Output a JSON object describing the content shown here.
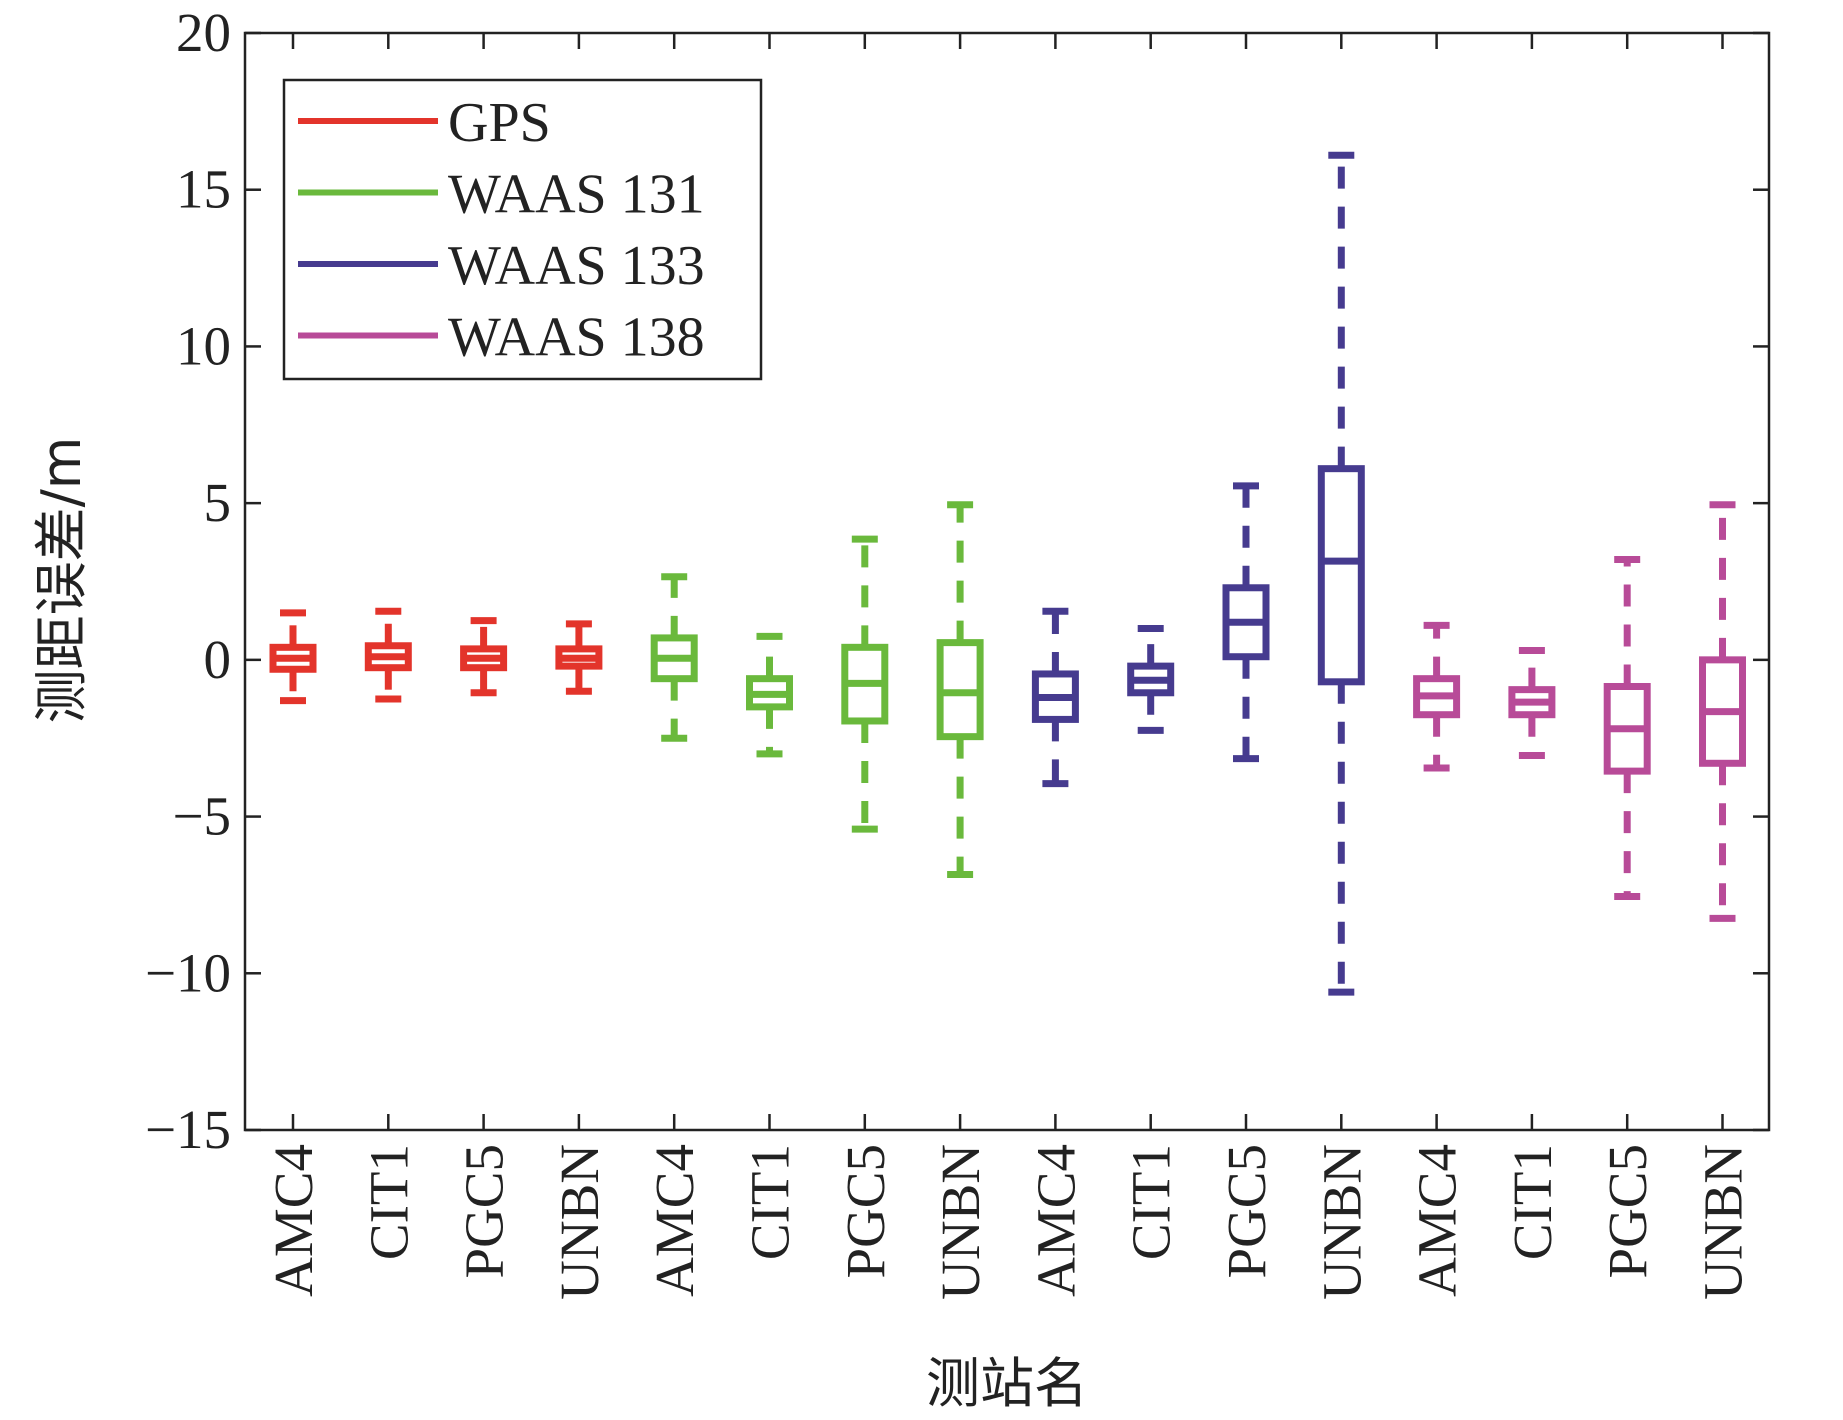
{
  "chart_data": {
    "type": "boxplot",
    "title": "",
    "xlabel": "测站名",
    "ylabel": "测距误差/m",
    "ylim": [
      -15,
      20
    ],
    "yticks": [
      -15,
      -10,
      -5,
      0,
      5,
      10,
      15,
      20
    ],
    "ytick_labels": [
      "−15",
      "−10",
      "−5",
      "0",
      "5",
      "10",
      "15",
      "20"
    ],
    "grid": false,
    "legend_placement": "top-left",
    "categories": [
      "AMC4",
      "CIT1",
      "PGC5",
      "UNBN",
      "AMC4",
      "CIT1",
      "PGC5",
      "UNBN",
      "AMC4",
      "CIT1",
      "PGC5",
      "UNBN",
      "AMC4",
      "CIT1",
      "PGC5",
      "UNBN"
    ],
    "series": [
      {
        "name": "GPS",
        "color": "#e3342b",
        "boxes": [
          {
            "station": "AMC4",
            "whisker_low": -1.3,
            "q1": -0.3,
            "median": 0.05,
            "q3": 0.4,
            "whisker_high": 1.5
          },
          {
            "station": "CIT1",
            "whisker_low": -1.25,
            "q1": -0.25,
            "median": 0.1,
            "q3": 0.45,
            "whisker_high": 1.55
          },
          {
            "station": "PGC5",
            "whisker_low": -1.05,
            "q1": -0.25,
            "median": 0.05,
            "q3": 0.35,
            "whisker_high": 1.25
          },
          {
            "station": "UNBN",
            "whisker_low": -1.0,
            "q1": -0.2,
            "median": 0.05,
            "q3": 0.35,
            "whisker_high": 1.15
          }
        ]
      },
      {
        "name": "WAAS 131",
        "color": "#6ab93c",
        "boxes": [
          {
            "station": "AMC4",
            "whisker_low": -2.5,
            "q1": -0.6,
            "median": 0.05,
            "q3": 0.7,
            "whisker_high": 2.65
          },
          {
            "station": "CIT1",
            "whisker_low": -3.0,
            "q1": -1.5,
            "median": -1.1,
            "q3": -0.6,
            "whisker_high": 0.75
          },
          {
            "station": "PGC5",
            "whisker_low": -5.4,
            "q1": -1.95,
            "median": -0.75,
            "q3": 0.4,
            "whisker_high": 3.85
          },
          {
            "station": "UNBN",
            "whisker_low": -6.85,
            "q1": -2.45,
            "median": -1.05,
            "q3": 0.55,
            "whisker_high": 4.95
          }
        ]
      },
      {
        "name": "WAAS 133",
        "color": "#463b8f",
        "boxes": [
          {
            "station": "AMC4",
            "whisker_low": -3.95,
            "q1": -1.9,
            "median": -1.2,
            "q3": -0.45,
            "whisker_high": 1.55
          },
          {
            "station": "CIT1",
            "whisker_low": -2.25,
            "q1": -1.05,
            "median": -0.65,
            "q3": -0.2,
            "whisker_high": 1.0
          },
          {
            "station": "PGC5",
            "whisker_low": -3.15,
            "q1": 0.1,
            "median": 1.2,
            "q3": 2.3,
            "whisker_high": 5.55
          },
          {
            "station": "UNBN",
            "whisker_low": -10.6,
            "q1": -0.7,
            "median": 3.15,
            "q3": 6.1,
            "whisker_high": 16.1
          }
        ]
      },
      {
        "name": "WAAS 138",
        "color": "#b84b98",
        "boxes": [
          {
            "station": "AMC4",
            "whisker_low": -3.45,
            "q1": -1.75,
            "median": -1.15,
            "q3": -0.6,
            "whisker_high": 1.1
          },
          {
            "station": "CIT1",
            "whisker_low": -3.05,
            "q1": -1.75,
            "median": -1.35,
            "q3": -0.95,
            "whisker_high": 0.3
          },
          {
            "station": "PGC5",
            "whisker_low": -7.55,
            "q1": -3.55,
            "median": -2.2,
            "q3": -0.85,
            "whisker_high": 3.2
          },
          {
            "station": "UNBN",
            "whisker_low": -8.25,
            "q1": -3.3,
            "median": -1.65,
            "q3": 0.0,
            "whisker_high": 4.95
          }
        ]
      }
    ]
  }
}
